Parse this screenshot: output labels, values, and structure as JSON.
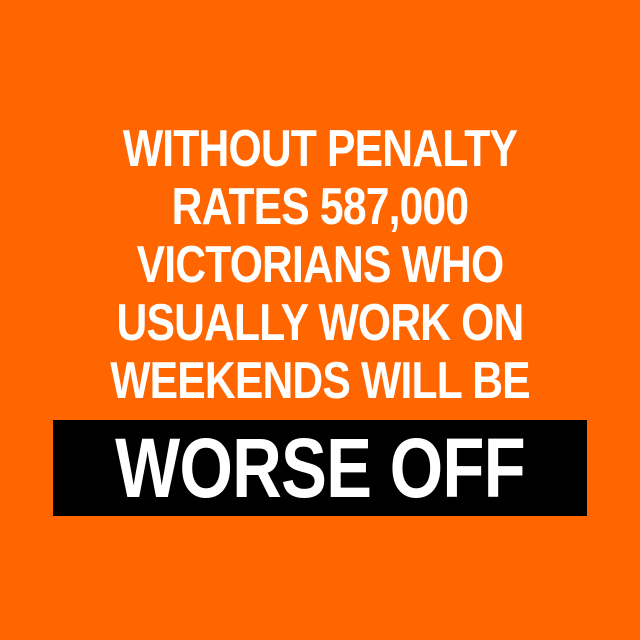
{
  "headline": {
    "lines": [
      "WITHOUT PENALTY",
      "RATES 587,000",
      "VICTORIANS WHO",
      "USUALLY WORK ON",
      "WEEKENDS WILL BE"
    ]
  },
  "banner": {
    "text": "WORSE OFF"
  },
  "colors": {
    "background": "#FF6600",
    "text": "#FFFFFF",
    "banner_background": "#000000"
  }
}
